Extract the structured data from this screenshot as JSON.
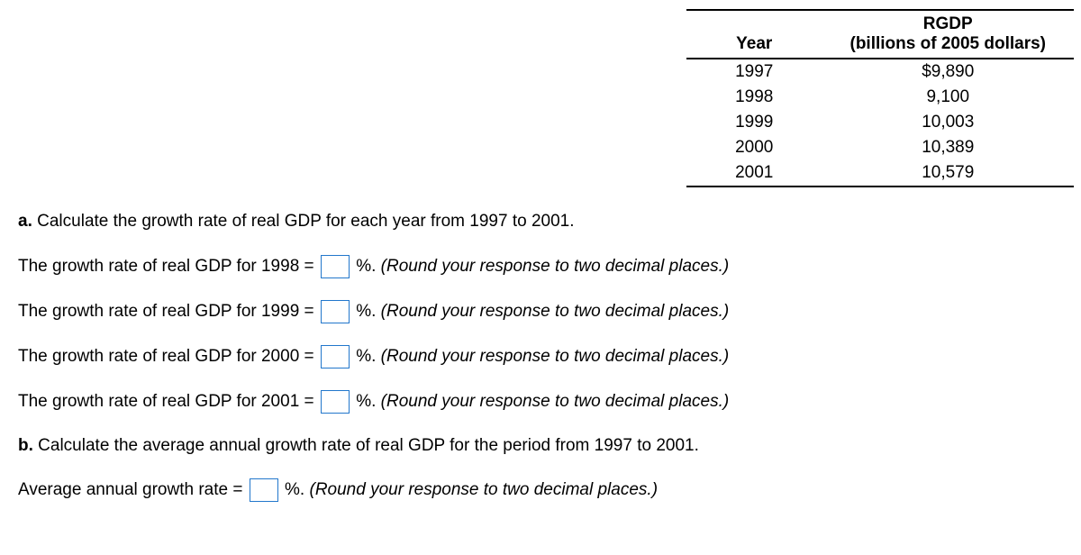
{
  "table": {
    "headers": {
      "year": "Year",
      "rgdp_line1": "RGDP",
      "rgdp_line2": "(billions of 2005 dollars)"
    },
    "rows": [
      {
        "year": "1997",
        "rgdp": "$9,890"
      },
      {
        "year": "1998",
        "rgdp": "9,100"
      },
      {
        "year": "1999",
        "rgdp": "10,003"
      },
      {
        "year": "2000",
        "rgdp": "10,389"
      },
      {
        "year": "2001",
        "rgdp": "10,579"
      }
    ]
  },
  "q_a": {
    "label": "a.",
    "text": "Calculate the growth rate of real GDP for each year from 1997 to 2001."
  },
  "lines": [
    {
      "prefix": "The growth rate of real GDP for 1998 =",
      "suffix": "%.",
      "hint": "(Round your response to two decimal places.)"
    },
    {
      "prefix": "The growth rate of real GDP for 1999 =",
      "suffix": "%.",
      "hint": "(Round your response to two decimal places.)"
    },
    {
      "prefix": "The growth rate of real GDP for 2000 =",
      "suffix": "%.",
      "hint": "(Round your response to two decimal places.)"
    },
    {
      "prefix": "The growth rate of real GDP for 2001 =",
      "suffix": "%.",
      "hint": "(Round your response to two decimal places.)"
    }
  ],
  "q_b": {
    "label": "b.",
    "text": "Calculate the average annual growth rate of real GDP for the period from 1997 to 2001."
  },
  "avg_line": {
    "prefix": "Average annual growth rate =",
    "suffix": "%.",
    "hint": "(Round your response to two decimal places.)"
  }
}
